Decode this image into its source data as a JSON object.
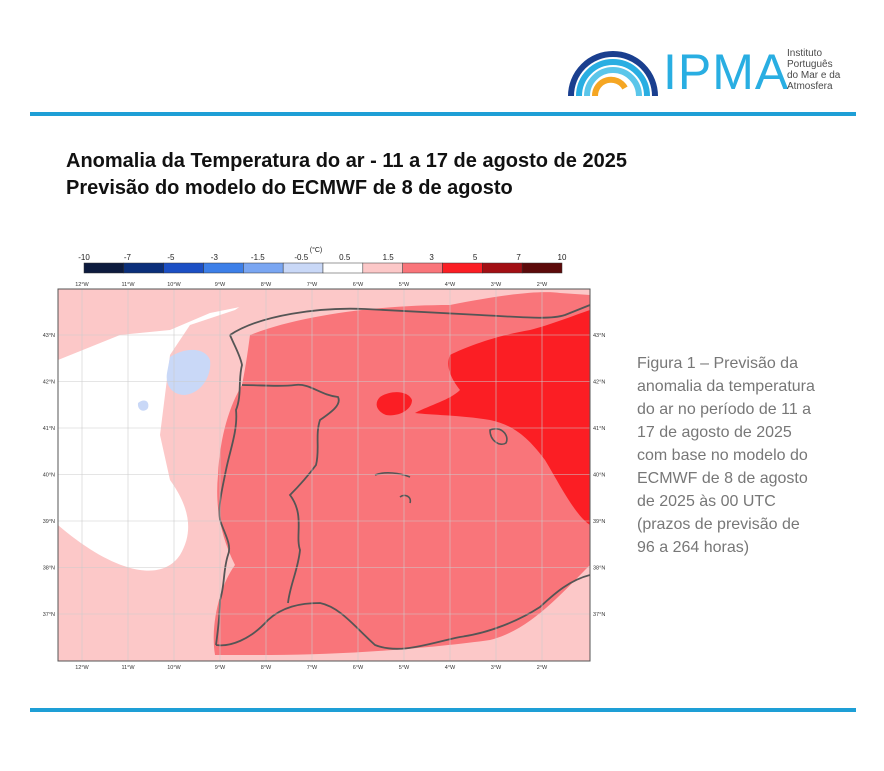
{
  "logo": {
    "name": "IPMA",
    "subtitle_lines": [
      "Instituto",
      "Português",
      "do Mar e da",
      "Atmosfera"
    ]
  },
  "title": {
    "line1": "Anomalia da Temperatura do ar - 11 a 17 de agosto de 2025",
    "line2": "Previsão do modelo do ECMWF de 8 de agosto"
  },
  "map": {
    "unit": "(°C)",
    "colorbar": {
      "ticks": [
        "-10",
        "-7",
        "-5",
        "-3",
        "-1.5",
        "-0.5",
        "0.5",
        "1.5",
        "3",
        "5",
        "7",
        "10"
      ],
      "colors": [
        "#0d1b3e",
        "#0b2f7a",
        "#1c4fc4",
        "#3d7fe8",
        "#7aa6f2",
        "#c9d8f7",
        "#ffffff",
        "#fcc8c8",
        "#f9757a",
        "#fb1e24",
        "#a20f14",
        "#5c0a0a"
      ]
    },
    "lon_labels": [
      "12°W",
      "11°W",
      "10°W",
      "9°W",
      "8°W",
      "7°W",
      "6°W",
      "5°W",
      "4°W",
      "3°W",
      "2°W"
    ],
    "lat_labels": [
      "43°N",
      "42°N",
      "41°N",
      "40°N",
      "39°N",
      "38°N",
      "37°N"
    ]
  },
  "caption": {
    "lines": [
      "Figura 1 – Previsão da",
      "anomalia da temperatura",
      "do ar no período de 11 a",
      "17 de agosto de 2025",
      "com base no modelo do",
      "ECMWF de 8 de agosto",
      "de 2025 às 00 UTC",
      "(prazos de previsão de",
      "96 a 264 horas)"
    ]
  }
}
